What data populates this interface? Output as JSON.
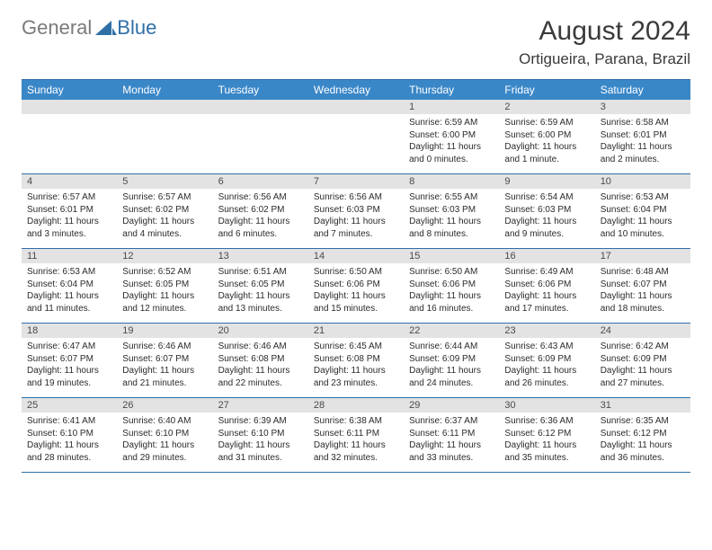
{
  "logo": {
    "text_general": "General",
    "text_blue": "Blue",
    "triangle_color": "#2f6fa8"
  },
  "title": "August 2024",
  "location": "Ortigueira, Parana, Brazil",
  "colors": {
    "header_bg": "#3a87c8",
    "border": "#2f6fa8",
    "daynum_bg": "#e3e3e3",
    "text": "#2b2b2b"
  },
  "day_names": [
    "Sunday",
    "Monday",
    "Tuesday",
    "Wednesday",
    "Thursday",
    "Friday",
    "Saturday"
  ],
  "weeks": [
    [
      null,
      null,
      null,
      null,
      {
        "n": "1",
        "sr": "6:59 AM",
        "ss": "6:00 PM",
        "dl": "11 hours and 0 minutes."
      },
      {
        "n": "2",
        "sr": "6:59 AM",
        "ss": "6:00 PM",
        "dl": "11 hours and 1 minute."
      },
      {
        "n": "3",
        "sr": "6:58 AM",
        "ss": "6:01 PM",
        "dl": "11 hours and 2 minutes."
      }
    ],
    [
      {
        "n": "4",
        "sr": "6:57 AM",
        "ss": "6:01 PM",
        "dl": "11 hours and 3 minutes."
      },
      {
        "n": "5",
        "sr": "6:57 AM",
        "ss": "6:02 PM",
        "dl": "11 hours and 4 minutes."
      },
      {
        "n": "6",
        "sr": "6:56 AM",
        "ss": "6:02 PM",
        "dl": "11 hours and 6 minutes."
      },
      {
        "n": "7",
        "sr": "6:56 AM",
        "ss": "6:03 PM",
        "dl": "11 hours and 7 minutes."
      },
      {
        "n": "8",
        "sr": "6:55 AM",
        "ss": "6:03 PM",
        "dl": "11 hours and 8 minutes."
      },
      {
        "n": "9",
        "sr": "6:54 AM",
        "ss": "6:03 PM",
        "dl": "11 hours and 9 minutes."
      },
      {
        "n": "10",
        "sr": "6:53 AM",
        "ss": "6:04 PM",
        "dl": "11 hours and 10 minutes."
      }
    ],
    [
      {
        "n": "11",
        "sr": "6:53 AM",
        "ss": "6:04 PM",
        "dl": "11 hours and 11 minutes."
      },
      {
        "n": "12",
        "sr": "6:52 AM",
        "ss": "6:05 PM",
        "dl": "11 hours and 12 minutes."
      },
      {
        "n": "13",
        "sr": "6:51 AM",
        "ss": "6:05 PM",
        "dl": "11 hours and 13 minutes."
      },
      {
        "n": "14",
        "sr": "6:50 AM",
        "ss": "6:06 PM",
        "dl": "11 hours and 15 minutes."
      },
      {
        "n": "15",
        "sr": "6:50 AM",
        "ss": "6:06 PM",
        "dl": "11 hours and 16 minutes."
      },
      {
        "n": "16",
        "sr": "6:49 AM",
        "ss": "6:06 PM",
        "dl": "11 hours and 17 minutes."
      },
      {
        "n": "17",
        "sr": "6:48 AM",
        "ss": "6:07 PM",
        "dl": "11 hours and 18 minutes."
      }
    ],
    [
      {
        "n": "18",
        "sr": "6:47 AM",
        "ss": "6:07 PM",
        "dl": "11 hours and 19 minutes."
      },
      {
        "n": "19",
        "sr": "6:46 AM",
        "ss": "6:07 PM",
        "dl": "11 hours and 21 minutes."
      },
      {
        "n": "20",
        "sr": "6:46 AM",
        "ss": "6:08 PM",
        "dl": "11 hours and 22 minutes."
      },
      {
        "n": "21",
        "sr": "6:45 AM",
        "ss": "6:08 PM",
        "dl": "11 hours and 23 minutes."
      },
      {
        "n": "22",
        "sr": "6:44 AM",
        "ss": "6:09 PM",
        "dl": "11 hours and 24 minutes."
      },
      {
        "n": "23",
        "sr": "6:43 AM",
        "ss": "6:09 PM",
        "dl": "11 hours and 26 minutes."
      },
      {
        "n": "24",
        "sr": "6:42 AM",
        "ss": "6:09 PM",
        "dl": "11 hours and 27 minutes."
      }
    ],
    [
      {
        "n": "25",
        "sr": "6:41 AM",
        "ss": "6:10 PM",
        "dl": "11 hours and 28 minutes."
      },
      {
        "n": "26",
        "sr": "6:40 AM",
        "ss": "6:10 PM",
        "dl": "11 hours and 29 minutes."
      },
      {
        "n": "27",
        "sr": "6:39 AM",
        "ss": "6:10 PM",
        "dl": "11 hours and 31 minutes."
      },
      {
        "n": "28",
        "sr": "6:38 AM",
        "ss": "6:11 PM",
        "dl": "11 hours and 32 minutes."
      },
      {
        "n": "29",
        "sr": "6:37 AM",
        "ss": "6:11 PM",
        "dl": "11 hours and 33 minutes."
      },
      {
        "n": "30",
        "sr": "6:36 AM",
        "ss": "6:12 PM",
        "dl": "11 hours and 35 minutes."
      },
      {
        "n": "31",
        "sr": "6:35 AM",
        "ss": "6:12 PM",
        "dl": "11 hours and 36 minutes."
      }
    ]
  ],
  "labels": {
    "sunrise": "Sunrise:",
    "sunset": "Sunset:",
    "daylight": "Daylight:"
  }
}
